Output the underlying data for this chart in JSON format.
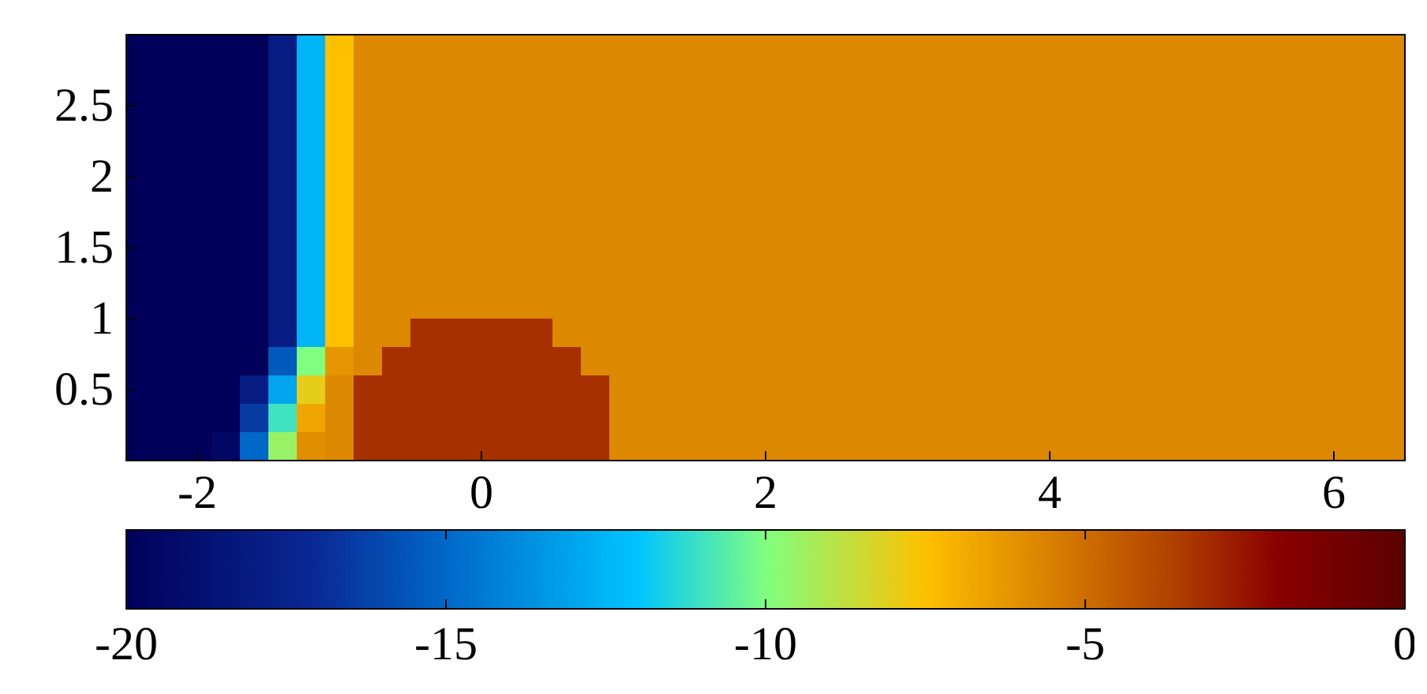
{
  "chart_data": {
    "type": "heatmap",
    "x": [
      -2.4,
      -2.2,
      -2,
      -1.8,
      -1.6,
      -1.4,
      -1.2,
      -1,
      -0.8,
      -0.6,
      -0.4,
      -0.2,
      0,
      0.2,
      0.4,
      0.6,
      0.8,
      1,
      1.2,
      1.4,
      1.6,
      1.8,
      2,
      2.2,
      2.4,
      2.6,
      2.8,
      3,
      3.2,
      3.4,
      3.6,
      3.8,
      4,
      4.2,
      4.4,
      4.6,
      4.8,
      5,
      5.2,
      5.4,
      5.6,
      5.8,
      6,
      6.2,
      6.4
    ],
    "y": [
      2.9,
      2.7,
      2.5,
      2.3,
      2.1,
      1.9,
      1.7,
      1.5,
      1.3,
      1.1,
      0.9,
      0.7,
      0.5,
      0.3,
      0.1
    ],
    "cells": [
      [
        -20,
        -20,
        -20,
        -20,
        -20,
        -18,
        -12.5,
        -7.5,
        -5.8,
        -5.8,
        -5.8,
        -5.8,
        -5.8,
        -5.8,
        -5.8,
        -5.8,
        -5.8,
        -5.8,
        -5.8,
        -5.8,
        -5.8,
        -5.8,
        -5.8,
        -5.8,
        -5.8,
        -5.8,
        -5.8,
        -5.8,
        -5.8,
        -5.8,
        -5.8,
        -5.8,
        -5.8,
        -5.8,
        -5.8,
        -5.8,
        -5.8,
        -5.8,
        -5.8,
        -5.8,
        -5.8,
        -5.8,
        -5.8,
        -5.8,
        -5.8
      ],
      [
        -20,
        -20,
        -20,
        -20,
        -20,
        -18,
        -12.5,
        -7.5,
        -5.8,
        -5.8,
        -5.8,
        -5.8,
        -5.8,
        -5.8,
        -5.8,
        -5.8,
        -5.8,
        -5.8,
        -5.8,
        -5.8,
        -5.8,
        -5.8,
        -5.8,
        -5.8,
        -5.8,
        -5.8,
        -5.8,
        -5.8,
        -5.8,
        -5.8,
        -5.8,
        -5.8,
        -5.8,
        -5.8,
        -5.8,
        -5.8,
        -5.8,
        -5.8,
        -5.8,
        -5.8,
        -5.8,
        -5.8,
        -5.8,
        -5.8,
        -5.8
      ],
      [
        -20,
        -20,
        -20,
        -20,
        -20,
        -18,
        -12.5,
        -7.5,
        -5.8,
        -5.8,
        -5.8,
        -5.8,
        -5.8,
        -5.8,
        -5.8,
        -5.8,
        -5.8,
        -5.8,
        -5.8,
        -5.8,
        -5.8,
        -5.8,
        -5.8,
        -5.8,
        -5.8,
        -5.8,
        -5.8,
        -5.8,
        -5.8,
        -5.8,
        -5.8,
        -5.8,
        -5.8,
        -5.8,
        -5.8,
        -5.8,
        -5.8,
        -5.8,
        -5.8,
        -5.8,
        -5.8,
        -5.8,
        -5.8,
        -5.8,
        -5.8
      ],
      [
        -20,
        -20,
        -20,
        -20,
        -20,
        -18,
        -12.5,
        -7.5,
        -5.8,
        -5.8,
        -5.8,
        -5.8,
        -5.8,
        -5.8,
        -5.8,
        -5.8,
        -5.8,
        -5.8,
        -5.8,
        -5.8,
        -5.8,
        -5.8,
        -5.8,
        -5.8,
        -5.8,
        -5.8,
        -5.8,
        -5.8,
        -5.8,
        -5.8,
        -5.8,
        -5.8,
        -5.8,
        -5.8,
        -5.8,
        -5.8,
        -5.8,
        -5.8,
        -5.8,
        -5.8,
        -5.8,
        -5.8,
        -5.8,
        -5.8,
        -5.8
      ],
      [
        -20,
        -20,
        -20,
        -20,
        -20,
        -18,
        -12.5,
        -7.5,
        -5.8,
        -5.8,
        -5.8,
        -5.8,
        -5.8,
        -5.8,
        -5.8,
        -5.8,
        -5.8,
        -5.8,
        -5.8,
        -5.8,
        -5.8,
        -5.8,
        -5.8,
        -5.8,
        -5.8,
        -5.8,
        -5.8,
        -5.8,
        -5.8,
        -5.8,
        -5.8,
        -5.8,
        -5.8,
        -5.8,
        -5.8,
        -5.8,
        -5.8,
        -5.8,
        -5.8,
        -5.8,
        -5.8,
        -5.8,
        -5.8,
        -5.8,
        -5.8
      ],
      [
        -20,
        -20,
        -20,
        -20,
        -20,
        -18,
        -12.5,
        -7.5,
        -5.8,
        -5.8,
        -5.8,
        -5.8,
        -5.8,
        -5.8,
        -5.8,
        -5.8,
        -5.8,
        -5.8,
        -5.8,
        -5.8,
        -5.8,
        -5.8,
        -5.8,
        -5.8,
        -5.8,
        -5.8,
        -5.8,
        -5.8,
        -5.8,
        -5.8,
        -5.8,
        -5.8,
        -5.8,
        -5.8,
        -5.8,
        -5.8,
        -5.8,
        -5.8,
        -5.8,
        -5.8,
        -5.8,
        -5.8,
        -5.8,
        -5.8,
        -5.8
      ],
      [
        -20,
        -20,
        -20,
        -20,
        -20,
        -18,
        -12.5,
        -7.5,
        -5.8,
        -5.8,
        -5.8,
        -5.8,
        -5.8,
        -5.8,
        -5.8,
        -5.8,
        -5.8,
        -5.8,
        -5.8,
        -5.8,
        -5.8,
        -5.8,
        -5.8,
        -5.8,
        -5.8,
        -5.8,
        -5.8,
        -5.8,
        -5.8,
        -5.8,
        -5.8,
        -5.8,
        -5.8,
        -5.8,
        -5.8,
        -5.8,
        -5.8,
        -5.8,
        -5.8,
        -5.8,
        -5.8,
        -5.8,
        -5.8,
        -5.8,
        -5.8
      ],
      [
        -20,
        -20,
        -20,
        -20,
        -20,
        -18,
        -12.5,
        -7.5,
        -5.8,
        -5.8,
        -5.8,
        -5.8,
        -5.8,
        -5.8,
        -5.8,
        -5.8,
        -5.8,
        -5.8,
        -5.8,
        -5.8,
        -5.8,
        -5.8,
        -5.8,
        -5.8,
        -5.8,
        -5.8,
        -5.8,
        -5.8,
        -5.8,
        -5.8,
        -5.8,
        -5.8,
        -5.8,
        -5.8,
        -5.8,
        -5.8,
        -5.8,
        -5.8,
        -5.8,
        -5.8,
        -5.8,
        -5.8,
        -5.8,
        -5.8,
        -5.8
      ],
      [
        -20,
        -20,
        -20,
        -20,
        -20,
        -18,
        -12.5,
        -7.5,
        -5.8,
        -5.8,
        -5.8,
        -5.8,
        -5.8,
        -5.8,
        -5.8,
        -5.8,
        -5.8,
        -5.8,
        -5.8,
        -5.8,
        -5.8,
        -5.8,
        -5.8,
        -5.8,
        -5.8,
        -5.8,
        -5.8,
        -5.8,
        -5.8,
        -5.8,
        -5.8,
        -5.8,
        -5.8,
        -5.8,
        -5.8,
        -5.8,
        -5.8,
        -5.8,
        -5.8,
        -5.8,
        -5.8,
        -5.8,
        -5.8,
        -5.8,
        -5.8
      ],
      [
        -20,
        -20,
        -20,
        -20,
        -20,
        -18,
        -12.5,
        -7.5,
        -5.8,
        -5.8,
        -5.8,
        -5.8,
        -5.8,
        -5.8,
        -5.8,
        -5.8,
        -5.8,
        -5.8,
        -5.8,
        -5.8,
        -5.8,
        -5.8,
        -5.8,
        -5.8,
        -5.8,
        -5.8,
        -5.8,
        -5.8,
        -5.8,
        -5.8,
        -5.8,
        -5.8,
        -5.8,
        -5.8,
        -5.8,
        -5.8,
        -5.8,
        -5.8,
        -5.8,
        -5.8,
        -5.8,
        -5.8,
        -5.8,
        -5.8,
        -5.8
      ],
      [
        -20,
        -20,
        -20,
        -20,
        -20,
        -18,
        -12.5,
        -7.5,
        -5.8,
        -5.8,
        -3.2,
        -3.2,
        -3.2,
        -3.2,
        -3.2,
        -5.8,
        -5.8,
        -5.8,
        -5.8,
        -5.8,
        -5.8,
        -5.8,
        -5.8,
        -5.8,
        -5.8,
        -5.8,
        -5.8,
        -5.8,
        -5.8,
        -5.8,
        -5.8,
        -5.8,
        -5.8,
        -5.8,
        -5.8,
        -5.8,
        -5.8,
        -5.8,
        -5.8,
        -5.8,
        -5.8,
        -5.8,
        -5.8,
        -5.8,
        -5.8
      ],
      [
        -20,
        -20,
        -20,
        -20,
        -20,
        -15.5,
        -10,
        -6.2,
        -5.8,
        -3.2,
        -3.2,
        -3.2,
        -3.2,
        -3.2,
        -3.2,
        -3.2,
        -5.8,
        -5.8,
        -5.8,
        -5.8,
        -5.8,
        -5.8,
        -5.8,
        -5.8,
        -5.8,
        -5.8,
        -5.8,
        -5.8,
        -5.8,
        -5.8,
        -5.8,
        -5.8,
        -5.8,
        -5.8,
        -5.8,
        -5.8,
        -5.8,
        -5.8,
        -5.8,
        -5.8,
        -5.8,
        -5.8,
        -5.8,
        -5.8,
        -5.8
      ],
      [
        -20,
        -20,
        -20,
        -20,
        -18,
        -13,
        -8,
        -5.8,
        -3.2,
        -3.2,
        -3.2,
        -3.2,
        -3.2,
        -3.2,
        -3.2,
        -3.2,
        -3.2,
        -5.8,
        -5.8,
        -5.8,
        -5.8,
        -5.8,
        -5.8,
        -5.8,
        -5.8,
        -5.8,
        -5.8,
        -5.8,
        -5.8,
        -5.8,
        -5.8,
        -5.8,
        -5.8,
        -5.8,
        -5.8,
        -5.8,
        -5.8,
        -5.8,
        -5.8,
        -5.8,
        -5.8,
        -5.8,
        -5.8,
        -5.8,
        -5.8
      ],
      [
        -20,
        -20,
        -20,
        -20,
        -16.5,
        -11,
        -6.7,
        -5.8,
        -3.2,
        -3.2,
        -3.2,
        -3.2,
        -3.2,
        -3.2,
        -3.2,
        -3.2,
        -3.2,
        -5.8,
        -5.8,
        -5.8,
        -5.8,
        -5.8,
        -5.8,
        -5.8,
        -5.8,
        -5.8,
        -5.8,
        -5.8,
        -5.8,
        -5.8,
        -5.8,
        -5.8,
        -5.8,
        -5.8,
        -5.8,
        -5.8,
        -5.8,
        -5.8,
        -5.8,
        -5.8,
        -5.8,
        -5.8,
        -5.8,
        -5.8,
        -5.8
      ],
      [
        -20,
        -20,
        -20,
        -19.5,
        -15,
        -9.5,
        -6,
        -5.8,
        -3.2,
        -3.2,
        -3.2,
        -3.2,
        -3.2,
        -3.2,
        -3.2,
        -3.2,
        -3.2,
        -5.8,
        -5.8,
        -5.8,
        -5.8,
        -5.8,
        -5.8,
        -5.8,
        -5.8,
        -5.8,
        -5.8,
        -5.8,
        -5.8,
        -5.8,
        -5.8,
        -5.8,
        -5.8,
        -5.8,
        -5.8,
        -5.8,
        -5.8,
        -5.8,
        -5.8,
        -5.8,
        -5.8,
        -5.8,
        -5.8,
        -5.8,
        -5.8
      ]
    ],
    "xlim": [
      -2.5,
      6.5
    ],
    "xticks": [
      -2,
      0,
      2,
      4,
      6
    ],
    "ylim": [
      0,
      3
    ],
    "yticks": [
      0.5,
      1,
      1.5,
      2,
      2.5
    ],
    "clim": [
      -20,
      0
    ],
    "cticks": [
      -20,
      -15,
      -10,
      -5,
      0
    ]
  }
}
